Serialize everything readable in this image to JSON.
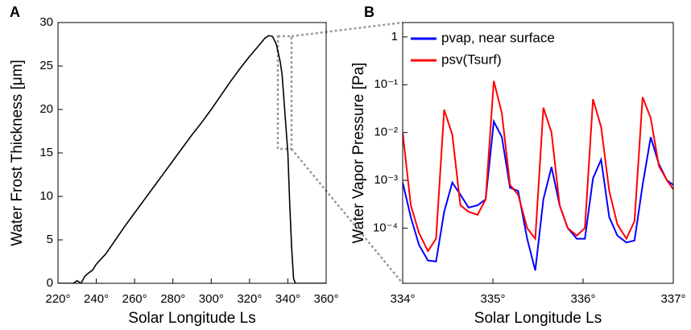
{
  "chart_data": [
    {
      "type": "line",
      "panel_label": "A",
      "xlabel": "Solar Longitude Ls",
      "ylabel": "Water Frost Thickness [μm]",
      "color": "#000000",
      "x": [
        220,
        228,
        230,
        232,
        234,
        236,
        238,
        240,
        245,
        250,
        255,
        260,
        265,
        270,
        275,
        280,
        285,
        290,
        295,
        300,
        305,
        310,
        315,
        320,
        325,
        328,
        330,
        332,
        334,
        336,
        337,
        338,
        339,
        340,
        341,
        342,
        343,
        344,
        350,
        360
      ],
      "values": [
        0,
        0,
        0.3,
        0,
        0.8,
        1.2,
        1.5,
        2.2,
        3.4,
        5,
        6.6,
        8.1,
        9.6,
        11.1,
        12.6,
        14.1,
        15.6,
        17.1,
        18.5,
        20,
        21.6,
        23.2,
        24.7,
        26.1,
        27.4,
        28.2,
        28.5,
        28.4,
        27.5,
        25.5,
        24,
        21,
        18,
        15,
        9,
        4,
        0.5,
        0,
        0,
        0
      ],
      "xlim": [
        220,
        360
      ],
      "xticks": [
        {
          "value": 220,
          "label": "220°"
        },
        {
          "value": 240,
          "label": "240°"
        },
        {
          "value": 260,
          "label": "260°"
        },
        {
          "value": 280,
          "label": "280°"
        },
        {
          "value": 300,
          "label": "300°"
        },
        {
          "value": 320,
          "label": "320°"
        },
        {
          "value": 340,
          "label": "340°"
        },
        {
          "value": 360,
          "label": "360°"
        }
      ],
      "ylim": [
        0,
        30
      ],
      "yticks": [
        0,
        5,
        10,
        15,
        20,
        25,
        30
      ]
    },
    {
      "type": "line",
      "panel_label": "B",
      "xlabel": "Solar Longitude Ls",
      "ylabel": "Water Vapor Pressure [Pa]",
      "yscale": "log",
      "legend": "upper left",
      "x": [
        334.0,
        334.09,
        334.18,
        334.28,
        334.37,
        334.46,
        334.55,
        334.64,
        334.73,
        334.83,
        334.92,
        335.01,
        335.1,
        335.19,
        335.28,
        335.38,
        335.47,
        335.56,
        335.65,
        335.74,
        335.83,
        335.93,
        336.02,
        336.11,
        336.2,
        336.29,
        336.38,
        336.48,
        336.57,
        336.66,
        336.75,
        336.84,
        336.93,
        337.0
      ],
      "series": [
        {
          "name": "pvap, near surface",
          "color": "#0000ff",
          "values": [
            0.0009,
            0.00017,
            4.5e-05,
            2.1e-05,
            2e-05,
            0.00022,
            0.0009,
            0.0005,
            0.00027,
            0.0003,
            0.0004,
            0.017,
            0.008,
            0.0007,
            0.0006,
            6e-05,
            1.3e-05,
            0.0004,
            0.0019,
            0.0003,
            0.0001,
            6e-05,
            6e-05,
            0.0011,
            0.0027,
            0.00017,
            7e-05,
            5e-05,
            5.5e-05,
            0.0008,
            0.008,
            0.0022,
            0.001,
            0.0008
          ]
        },
        {
          "name": "psv(Tsurf)",
          "color": "#ff0000",
          "values": [
            0.01,
            0.0003,
            8e-05,
            3.3e-05,
            6e-05,
            0.03,
            0.009,
            0.0003,
            0.00022,
            0.00019,
            0.0004,
            0.12,
            0.025,
            0.0008,
            0.0005,
            0.0001,
            6e-05,
            0.033,
            0.01,
            0.0003,
            0.0001,
            7e-05,
            0.0001,
            0.05,
            0.013,
            0.0006,
            0.00012,
            6e-05,
            0.00014,
            0.055,
            0.02,
            0.002,
            0.001,
            0.00065
          ]
        }
      ],
      "xlim": [
        334,
        337
      ],
      "xticks": [
        {
          "value": 334,
          "label": "334°"
        },
        {
          "value": 335,
          "label": "335°"
        },
        {
          "value": 336,
          "label": "336°"
        },
        {
          "value": 337,
          "label": "337°"
        }
      ],
      "ylim": [
        7e-06,
        2
      ],
      "yticks": [
        {
          "value": 0.0001,
          "label": "10⁻⁴"
        },
        {
          "value": 0.001,
          "label": "10⁻³"
        },
        {
          "value": 0.01,
          "label": "10⁻²"
        },
        {
          "value": 0.1,
          "label": "10⁻¹"
        },
        1
      ]
    }
  ]
}
